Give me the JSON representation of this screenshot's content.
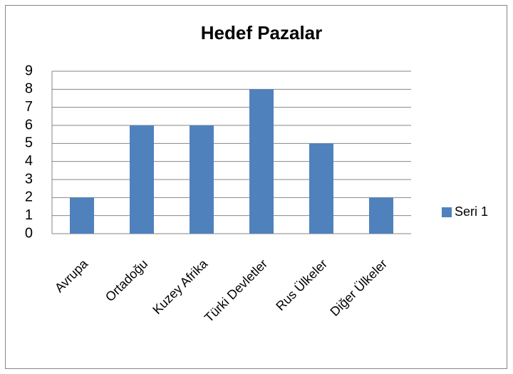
{
  "chart_data": {
    "type": "bar",
    "title": "Hedef Pazalar",
    "categories": [
      "Avrupa",
      "Ortadoğu",
      "Kuzey Afrika",
      "Türki Devletler",
      "Rus Ülkeler",
      "Diğer Ülkeler"
    ],
    "series": [
      {
        "name": "Seri 1",
        "color": "#4f81bd",
        "values": [
          2,
          6,
          6,
          8,
          5,
          2
        ]
      }
    ],
    "ylim": [
      0,
      9
    ],
    "yticks": [
      0,
      1,
      2,
      3,
      4,
      5,
      6,
      7,
      8,
      9
    ],
    "grid": true,
    "legend": "right"
  }
}
